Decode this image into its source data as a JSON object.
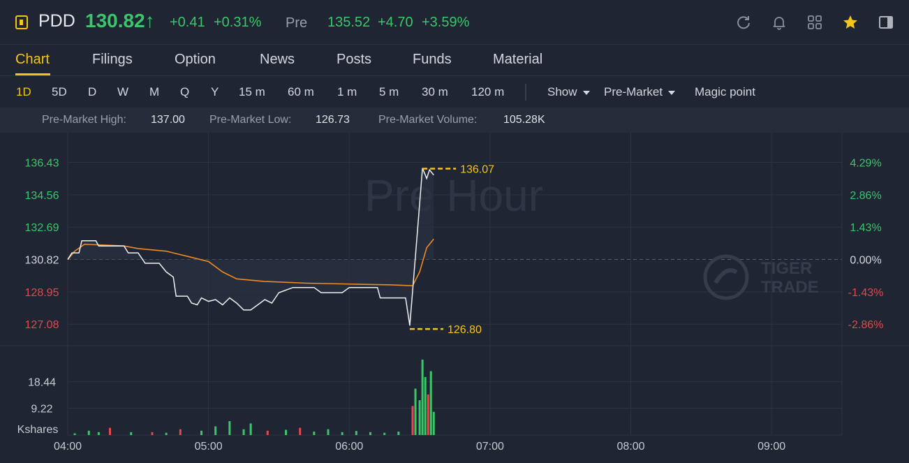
{
  "header": {
    "symbol": "PDD",
    "price": "130.82↑",
    "change": "+0.41",
    "change_pct": "+0.31%",
    "pre_label": "Pre",
    "pre_price": "135.52",
    "pre_change": "+4.70",
    "pre_change_pct": "+3.59%",
    "colors": {
      "up": "#3cc66b",
      "down": "#e5484d",
      "accent": "#f5c518"
    },
    "icons": [
      "refresh-icon",
      "bell-icon",
      "grid-icon",
      "star-icon",
      "panel-icon"
    ]
  },
  "tabs": [
    "Chart",
    "Filings",
    "Option",
    "News",
    "Posts",
    "Funds",
    "Material"
  ],
  "active_tab": "Chart",
  "periods": [
    "1D",
    "5D",
    "D",
    "W",
    "M",
    "Q",
    "Y",
    "15 m",
    "60 m",
    "1 m",
    "5 m",
    "30 m",
    "120 m"
  ],
  "active_period": "1D",
  "toolbar": {
    "show_label": "Show",
    "session_label": "Pre-Market",
    "magic_label": "Magic point"
  },
  "stats": {
    "high_label": "Pre-Market High:",
    "high_value": "137.00",
    "low_label": "Pre-Market Low:",
    "low_value": "126.73",
    "volume_label": "Pre-Market Volume:",
    "volume_value": "105.28K"
  },
  "chart_data": {
    "type": "line",
    "watermark": "Pre Hour",
    "brand": [
      "TIGER",
      "TRADE"
    ],
    "y_left_ticks": [
      "136.43",
      "134.56",
      "132.69",
      "130.82",
      "128.95",
      "127.08"
    ],
    "y_right_ticks": [
      "4.29%",
      "2.86%",
      "1.43%",
      "0.00%",
      "-1.43%",
      "-2.86%"
    ],
    "ylim": [
      126.0,
      137.5
    ],
    "reference_price": 130.82,
    "x_ticks": [
      "04:00",
      "05:00",
      "06:00",
      "07:00",
      "08:00",
      "09:00"
    ],
    "high_marker": "136.07",
    "low_marker": "126.80",
    "price_series": [
      [
        4.0,
        130.82
      ],
      [
        4.03,
        131.2
      ],
      [
        4.08,
        131.2
      ],
      [
        4.1,
        131.9
      ],
      [
        4.2,
        131.9
      ],
      [
        4.22,
        131.6
      ],
      [
        4.4,
        131.6
      ],
      [
        4.43,
        131.2
      ],
      [
        4.5,
        131.2
      ],
      [
        4.55,
        130.6
      ],
      [
        4.65,
        130.6
      ],
      [
        4.7,
        130.1
      ],
      [
        4.75,
        129.8
      ],
      [
        4.77,
        128.7
      ],
      [
        4.85,
        128.7
      ],
      [
        4.88,
        128.3
      ],
      [
        4.92,
        128.2
      ],
      [
        4.95,
        128.6
      ],
      [
        5.0,
        128.4
      ],
      [
        5.05,
        128.5
      ],
      [
        5.1,
        128.2
      ],
      [
        5.15,
        128.6
      ],
      [
        5.2,
        128.3
      ],
      [
        5.25,
        127.9
      ],
      [
        5.3,
        127.9
      ],
      [
        5.35,
        128.2
      ],
      [
        5.4,
        128.5
      ],
      [
        5.45,
        128.3
      ],
      [
        5.5,
        128.9
      ],
      [
        5.6,
        129.2
      ],
      [
        5.75,
        129.2
      ],
      [
        5.8,
        128.9
      ],
      [
        5.95,
        128.9
      ],
      [
        6.0,
        129.2
      ],
      [
        6.2,
        129.2
      ],
      [
        6.22,
        128.6
      ],
      [
        6.4,
        128.6
      ],
      [
        6.43,
        127.0
      ],
      [
        6.47,
        131.0
      ],
      [
        6.52,
        136.1
      ],
      [
        6.55,
        135.5
      ],
      [
        6.57,
        136.0
      ],
      [
        6.6,
        135.7
      ]
    ],
    "avg_series": [
      [
        4.0,
        130.82
      ],
      [
        4.05,
        131.3
      ],
      [
        4.12,
        131.7
      ],
      [
        4.4,
        131.6
      ],
      [
        4.5,
        131.45
      ],
      [
        4.7,
        131.3
      ],
      [
        4.85,
        131.0
      ],
      [
        5.0,
        130.7
      ],
      [
        5.1,
        130.1
      ],
      [
        5.2,
        129.7
      ],
      [
        5.4,
        129.55
      ],
      [
        5.7,
        129.45
      ],
      [
        6.0,
        129.4
      ],
      [
        6.3,
        129.35
      ],
      [
        6.45,
        129.3
      ],
      [
        6.5,
        130.1
      ],
      [
        6.55,
        131.5
      ],
      [
        6.6,
        132.0
      ]
    ],
    "volume": {
      "ylabel": "Kshares",
      "y_ticks": [
        "18.44",
        "9.22"
      ],
      "ylim": [
        0,
        27.66
      ],
      "bars": [
        [
          6.45,
          10.0,
          "down"
        ],
        [
          6.47,
          16.0,
          "up"
        ],
        [
          6.5,
          12.0,
          "up"
        ],
        [
          6.52,
          26.0,
          "up"
        ],
        [
          6.54,
          20.0,
          "up"
        ],
        [
          6.56,
          14.0,
          "down"
        ],
        [
          6.58,
          22.0,
          "up"
        ],
        [
          6.6,
          8.0,
          "up"
        ],
        [
          4.05,
          0.6,
          "up"
        ],
        [
          4.15,
          1.5,
          "up"
        ],
        [
          4.22,
          1.0,
          "up"
        ],
        [
          4.3,
          2.5,
          "down"
        ],
        [
          4.45,
          1.0,
          "up"
        ],
        [
          4.6,
          1.0,
          "down"
        ],
        [
          4.7,
          0.8,
          "up"
        ],
        [
          4.8,
          2.0,
          "down"
        ],
        [
          4.95,
          1.5,
          "up"
        ],
        [
          5.05,
          3.0,
          "up"
        ],
        [
          5.15,
          4.8,
          "up"
        ],
        [
          5.25,
          2.0,
          "up"
        ],
        [
          5.3,
          4.0,
          "up"
        ],
        [
          5.42,
          1.5,
          "down"
        ],
        [
          5.55,
          1.8,
          "up"
        ],
        [
          5.65,
          2.5,
          "down"
        ],
        [
          5.75,
          1.2,
          "up"
        ],
        [
          5.85,
          2.0,
          "up"
        ],
        [
          5.95,
          1.0,
          "up"
        ],
        [
          6.05,
          1.4,
          "up"
        ],
        [
          6.15,
          1.0,
          "up"
        ],
        [
          6.25,
          0.8,
          "up"
        ],
        [
          6.35,
          1.2,
          "up"
        ]
      ]
    }
  }
}
